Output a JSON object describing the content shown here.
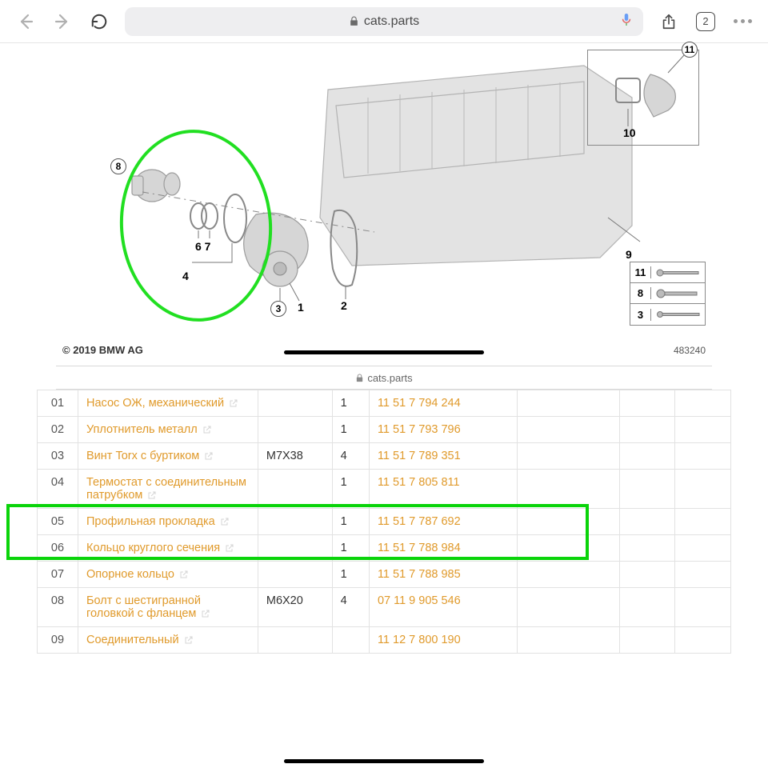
{
  "browser": {
    "url_host": "cats.parts",
    "tab_count": "2"
  },
  "diagram": {
    "copyright": "© 2019 BMW AG",
    "drawing_number": "483240",
    "callouts": [
      "1",
      "2",
      "3",
      "4",
      "67",
      "8",
      "9",
      "10",
      "11"
    ],
    "bolt_rows": [
      "11",
      "8",
      "3"
    ],
    "secondary_host": "cats.parts",
    "ellipse_color": "#21df21",
    "highlight_color": "#0ad40a"
  },
  "link_color": "#e09a2b",
  "border_color": "#e2e2e2",
  "parts": [
    {
      "num": "01",
      "name": "Насос ОЖ, механический",
      "dim": "",
      "qty": "1",
      "pn": "11 51 7 794 244"
    },
    {
      "num": "02",
      "name": "Уплотнитель металл",
      "dim": "",
      "qty": "1",
      "pn": "11 51 7 793 796"
    },
    {
      "num": "03",
      "name": "Винт Torx с буртиком",
      "dim": "M7X38",
      "qty": "4",
      "pn": "11 51 7 789 351"
    },
    {
      "num": "04",
      "name": "Термостат с соединительным патрубком",
      "dim": "",
      "qty": "1",
      "pn": "11 51 7 805 811"
    },
    {
      "num": "05",
      "name": "Профильная прокладка",
      "dim": "",
      "qty": "1",
      "pn": "11 51 7 787 692"
    },
    {
      "num": "06",
      "name": "Кольцо круглого сечения",
      "dim": "",
      "qty": "1",
      "pn": "11 51 7 788 984"
    },
    {
      "num": "07",
      "name": "Опорное кольцо",
      "dim": "",
      "qty": "1",
      "pn": "11 51 7 788 985"
    },
    {
      "num": "08",
      "name": "Болт с шестигранной головкой с фланцем",
      "dim": "M6X20",
      "qty": "4",
      "pn": "07 11 9 905 546"
    },
    {
      "num": "09",
      "name": "Соединительный",
      "dim": "",
      "qty": "",
      "pn": "11 12 7 800 190"
    }
  ],
  "highlight_rows": [
    "05",
    "06"
  ]
}
